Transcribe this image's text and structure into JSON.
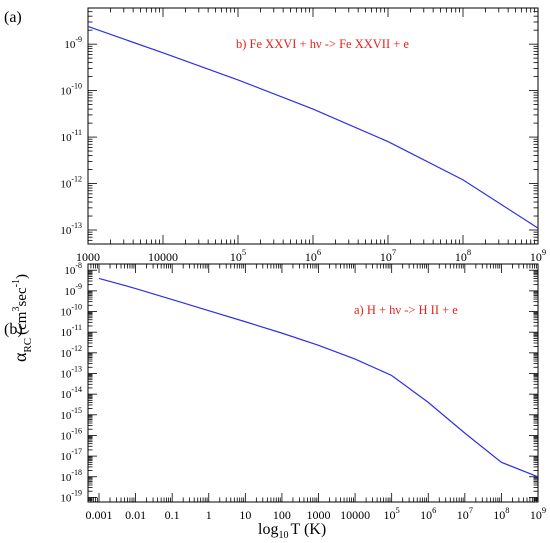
{
  "figure": {
    "ylabel_main": "α",
    "ylabel_sub": "RC",
    "ylabel_unit": "(cm",
    "ylabel_unit_sup": "3",
    "ylabel_unit2": "sec",
    "ylabel_unit2_sup": "-1",
    "ylabel_close": ")",
    "xlabel_main": "log",
    "xlabel_sub": "10",
    "xlabel_rest": "T (K)"
  },
  "chart_data": [
    {
      "type": "line",
      "panel_tag": "(a)",
      "annotation": "b) Fe XXVI + hν -> Fe XXVII + e",
      "annotation_color": "#e8201c",
      "line_color": "#2f2fe6",
      "x_scale": "log",
      "y_scale": "log",
      "xlim": [
        1000,
        1000000000
      ],
      "ylim": [
        5e-14,
        6e-09
      ],
      "x_ticks": [
        {
          "value": 1000,
          "label": "1000"
        },
        {
          "value": 10000,
          "label": "10000"
        },
        {
          "value": 100000,
          "label": "10",
          "sup": "5"
        },
        {
          "value": 1000000,
          "label": "10",
          "sup": "6"
        },
        {
          "value": 10000000,
          "label": "10",
          "sup": "7"
        },
        {
          "value": 100000000,
          "label": "10",
          "sup": "8"
        },
        {
          "value": 1000000000,
          "label": "10",
          "sup": "9"
        }
      ],
      "y_ticks": [
        {
          "value": 1e-09,
          "label": "10",
          "sup": "-9"
        },
        {
          "value": 1e-10,
          "label": "10",
          "sup": "-10"
        },
        {
          "value": 1e-11,
          "label": "10",
          "sup": "-11"
        },
        {
          "value": 1e-12,
          "label": "10",
          "sup": "-12"
        },
        {
          "value": 1e-13,
          "label": "10",
          "sup": "-13"
        }
      ],
      "series": [
        {
          "x": [
            1000,
            10000,
            100000,
            1000000,
            10000000,
            100000000,
            1000000000
          ],
          "y": [
            2.4e-09,
            6.5e-10,
            1.7e-10,
            4e-11,
            8e-12,
            1.2e-12,
            1.1e-13
          ]
        }
      ]
    },
    {
      "type": "line",
      "panel_tag": "(b)",
      "annotation": "a) H + hν -> H II + e",
      "annotation_color": "#e8201c",
      "line_color": "#2f2fe6",
      "x_scale": "log",
      "y_scale": "log",
      "xlim": [
        0.0005,
        1000000000
      ],
      "ylim": [
        6e-20,
        2e-08
      ],
      "x_ticks": [
        {
          "value": 0.001,
          "label": "0.001"
        },
        {
          "value": 0.01,
          "label": "0.01"
        },
        {
          "value": 0.1,
          "label": "0.1"
        },
        {
          "value": 1,
          "label": "1"
        },
        {
          "value": 10,
          "label": "10"
        },
        {
          "value": 100,
          "label": "100"
        },
        {
          "value": 1000,
          "label": "1000"
        },
        {
          "value": 10000,
          "label": "10000"
        },
        {
          "value": 100000,
          "label": "10",
          "sup": "5"
        },
        {
          "value": 1000000,
          "label": "10",
          "sup": "6"
        },
        {
          "value": 10000000,
          "label": "10",
          "sup": "7"
        },
        {
          "value": 100000000,
          "label": "10",
          "sup": "8"
        },
        {
          "value": 1000000000,
          "label": "10",
          "sup": "9"
        }
      ],
      "y_ticks": [
        {
          "value": 1e-08,
          "label": "10",
          "sup": "-8"
        },
        {
          "value": 1e-09,
          "label": "10",
          "sup": "-9"
        },
        {
          "value": 1e-10,
          "label": "10",
          "sup": "-10"
        },
        {
          "value": 1e-11,
          "label": "10",
          "sup": "-11"
        },
        {
          "value": 1e-12,
          "label": "10",
          "sup": "-12"
        },
        {
          "value": 1e-13,
          "label": "10",
          "sup": "-13"
        },
        {
          "value": 1e-14,
          "label": "10",
          "sup": "-14"
        },
        {
          "value": 1e-15,
          "label": "10",
          "sup": "-15"
        },
        {
          "value": 1e-16,
          "label": "10",
          "sup": "-16"
        },
        {
          "value": 1e-17,
          "label": "10",
          "sup": "-17"
        },
        {
          "value": 1e-18,
          "label": "10",
          "sup": "-18"
        },
        {
          "value": 1e-19,
          "label": "10",
          "sup": "-19"
        }
      ],
      "series": [
        {
          "x": [
            0.001,
            0.01,
            0.1,
            1,
            10,
            100,
            1000,
            10000,
            100000,
            1000000,
            10000000,
            100000000,
            1000000000
          ],
          "y": [
            4e-09,
            1.3e-09,
            3.8e-10,
            1.1e-10,
            3.2e-11,
            9e-12,
            2.3e-12,
            5e-13,
            8e-14,
            4e-15,
            1.3e-16,
            5e-18,
            1e-18
          ]
        }
      ]
    }
  ]
}
